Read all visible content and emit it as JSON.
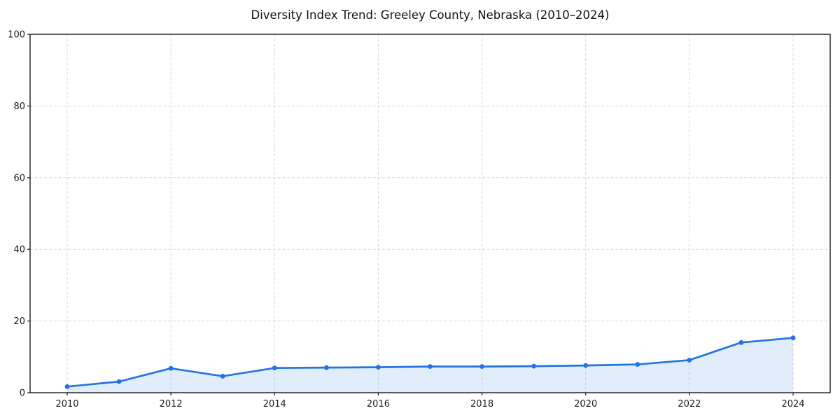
{
  "chart_data": {
    "type": "area",
    "title": "Diversity Index Trend: Greeley County, Nebraska (2010–2024)",
    "series_name": "Diversity Index",
    "x": [
      2010,
      2011,
      2012,
      2013,
      2014,
      2015,
      2016,
      2017,
      2018,
      2019,
      2020,
      2021,
      2022,
      2023,
      2024
    ],
    "values": [
      1.7,
      3.1,
      6.8,
      4.6,
      6.9,
      7.0,
      7.1,
      7.3,
      7.3,
      7.4,
      7.6,
      7.9,
      9.1,
      14.0,
      15.3
    ],
    "xlabel": "",
    "ylabel": "",
    "xlim": [
      2009.3,
      2024.7
    ],
    "ylim": [
      0,
      100
    ],
    "xticks": [
      2010,
      2012,
      2014,
      2016,
      2018,
      2020,
      2022,
      2024
    ],
    "yticks": [
      0,
      20,
      40,
      60,
      80,
      100
    ],
    "grid": true,
    "grid_linestyle": "dashed",
    "legend_position": "none",
    "colors": {
      "line": "#2273e3",
      "marker": "#2273e3",
      "fill": "rgba(34,115,227,0.13)",
      "grid": "#d8d8d8",
      "spine": "#1a1a1a",
      "tick_label": "#1a1a1a",
      "title": "#111111",
      "background": "#ffffff"
    },
    "marker_style": "circle",
    "marker_radius": 3.4,
    "line_width": 2.7
  }
}
